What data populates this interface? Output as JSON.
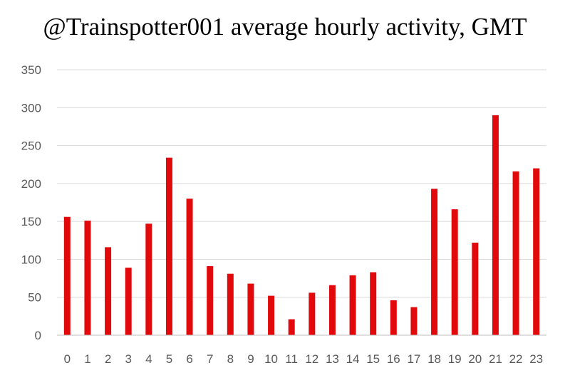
{
  "chart_data": {
    "type": "bar",
    "title": "@Trainspotter001 average hourly activity, GMT",
    "xlabel": "",
    "ylabel": "",
    "categories": [
      "0",
      "1",
      "2",
      "3",
      "4",
      "5",
      "6",
      "7",
      "8",
      "9",
      "10",
      "11",
      "12",
      "13",
      "14",
      "15",
      "16",
      "17",
      "18",
      "19",
      "20",
      "21",
      "22",
      "23"
    ],
    "values": [
      156,
      151,
      116,
      89,
      147,
      234,
      180,
      91,
      81,
      68,
      52,
      21,
      56,
      66,
      79,
      83,
      46,
      37,
      193,
      166,
      122,
      290,
      216,
      220
    ],
    "ylim": [
      0,
      350
    ],
    "yticks": [
      "0",
      "50",
      "100",
      "150",
      "200",
      "250",
      "300",
      "350"
    ],
    "grid": true,
    "legend": "none",
    "colors": {
      "bar": "#e2090c",
      "grid": "#d9d9d9",
      "axis": "#bfbfbf",
      "tick_text": "#595959"
    }
  }
}
